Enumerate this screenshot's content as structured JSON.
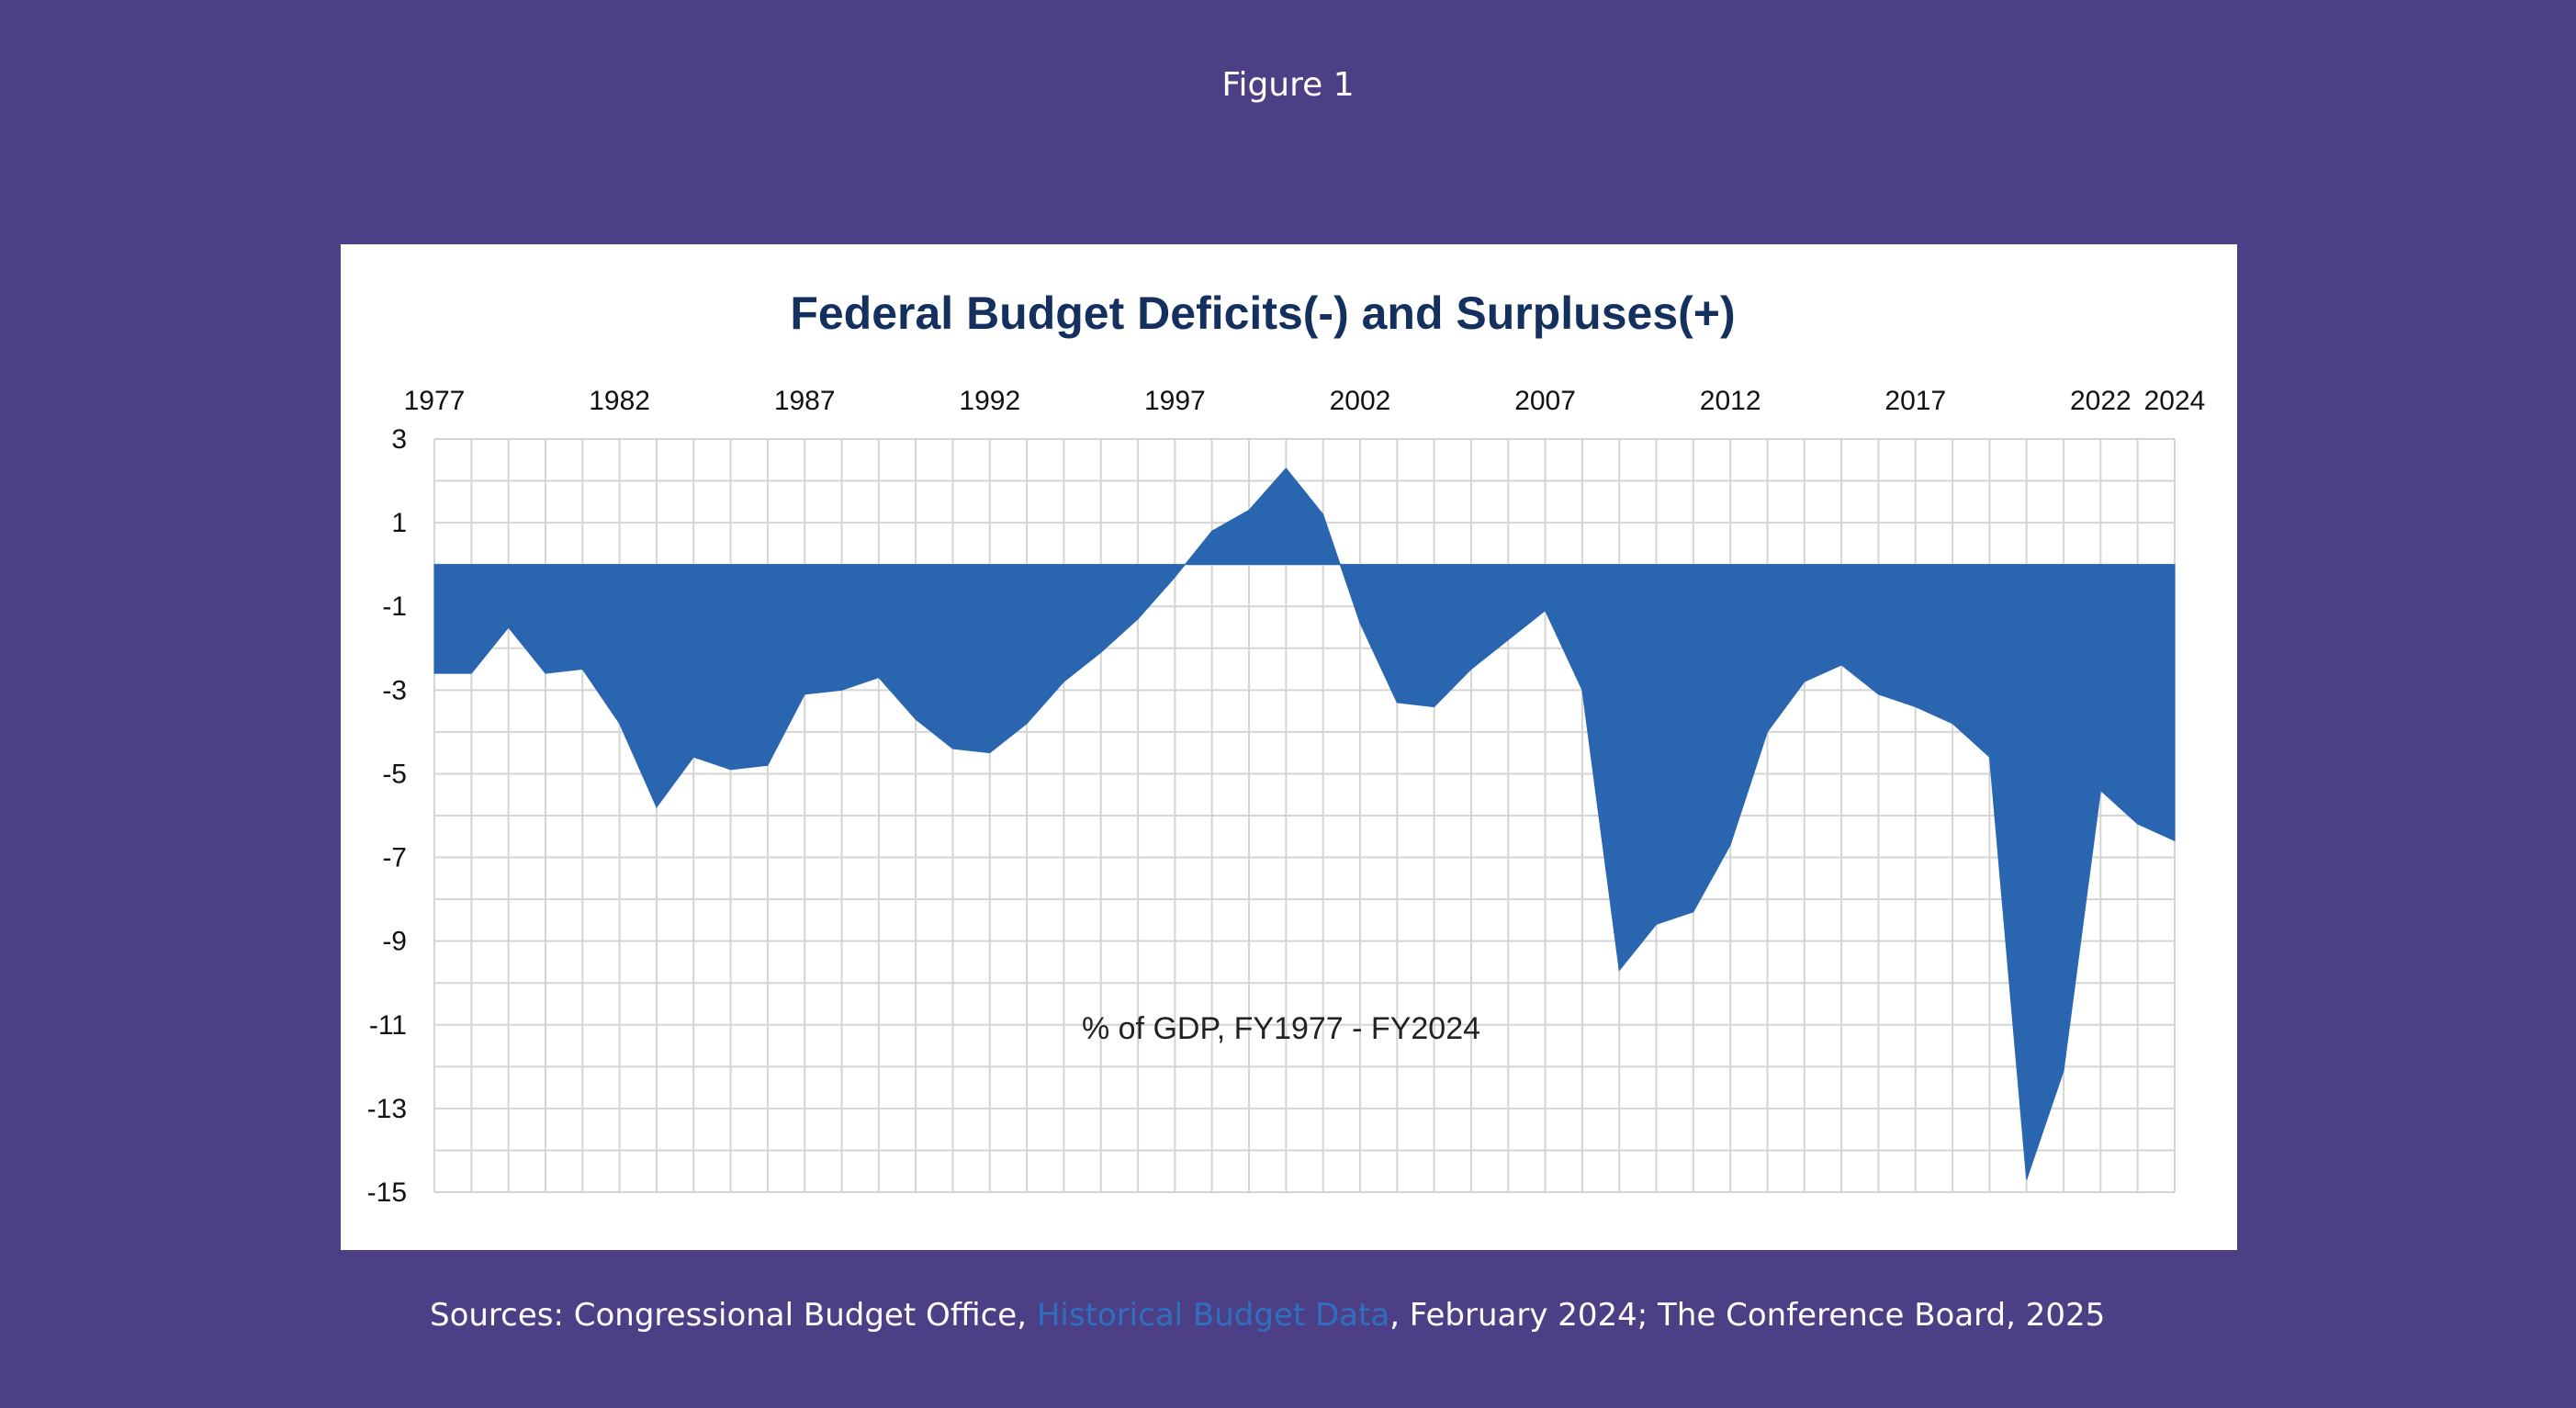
{
  "figure_label": "Figure 1",
  "sources": {
    "prefix": "Sources: Congressional Budget Office, ",
    "link_text": "Historical Budget Data",
    "suffix": ", February 2024; The Conference Board, 2025"
  },
  "colors": {
    "background": "#4d3f85",
    "fill": "#2a65b0",
    "title": "#14305e",
    "grid": "#d4d4d4",
    "link": "#2f6fc0"
  },
  "chart_data": {
    "type": "area",
    "title": "Federal Budget Deficits(-) and Surpluses(+)",
    "annotation": "% of GDP, FY1977 - FY2024",
    "xlabel": "",
    "ylabel": "",
    "x_tick_labels": [
      "1977",
      "1982",
      "1987",
      "1992",
      "1997",
      "2002",
      "2007",
      "2012",
      "2017",
      "2022",
      "2024"
    ],
    "y_ticks": [
      3,
      1,
      -1,
      -3,
      -5,
      -7,
      -9,
      -11,
      -13,
      -15
    ],
    "ylim": [
      -15,
      3
    ],
    "xlim": [
      1977,
      2024
    ],
    "grid": true,
    "x_axis_position": "top",
    "x": [
      1977,
      1978,
      1979,
      1980,
      1981,
      1982,
      1983,
      1984,
      1985,
      1986,
      1987,
      1988,
      1989,
      1990,
      1991,
      1992,
      1993,
      1994,
      1995,
      1996,
      1997,
      1998,
      1999,
      2000,
      2001,
      2002,
      2003,
      2004,
      2005,
      2006,
      2007,
      2008,
      2009,
      2010,
      2011,
      2012,
      2013,
      2014,
      2015,
      2016,
      2017,
      2018,
      2019,
      2020,
      2021,
      2022,
      2023,
      2024
    ],
    "values": [
      -2.6,
      -2.6,
      -1.5,
      -2.6,
      -2.5,
      -3.8,
      -5.8,
      -4.6,
      -4.9,
      -4.8,
      -3.1,
      -3.0,
      -2.7,
      -3.7,
      -4.4,
      -4.5,
      -3.8,
      -2.8,
      -2.1,
      -1.3,
      -0.3,
      0.8,
      1.3,
      2.3,
      1.2,
      -1.4,
      -3.3,
      -3.4,
      -2.5,
      -1.8,
      -1.1,
      -3.0,
      -9.7,
      -8.6,
      -8.3,
      -6.7,
      -4.0,
      -2.8,
      -2.4,
      -3.1,
      -3.4,
      -3.8,
      -4.6,
      -14.7,
      -12.1,
      -5.4,
      -6.2,
      -6.6
    ]
  }
}
